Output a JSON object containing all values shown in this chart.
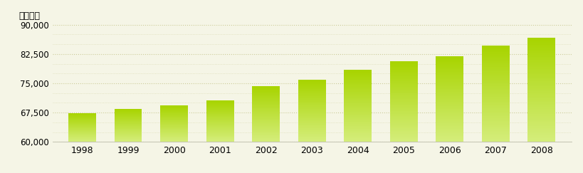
{
  "years": [
    1998,
    1999,
    2000,
    2001,
    2002,
    2003,
    2004,
    2005,
    2006,
    2007,
    2008
  ],
  "values": [
    67400,
    68500,
    69300,
    70600,
    74300,
    75900,
    78400,
    80600,
    81900,
    84600,
    86700
  ],
  "ylim": [
    60000,
    91000
  ],
  "yticks": [
    60000,
    67500,
    75000,
    82500,
    90000
  ],
  "minor_ticks": [
    62500,
    65000,
    70000,
    72500,
    77500,
    80000,
    85000,
    87500
  ],
  "ylabel": "施術者数",
  "bar_color_bottom": "#d4ed7a",
  "bar_color_top": "#a8d400",
  "background_color": "#f5f5e6",
  "grid_color": "#cccc99",
  "grid_color_minor": "#ddddb8",
  "bar_width": 0.6,
  "xlabel_fontsize": 9,
  "ylabel_fontsize": 9,
  "tick_fontsize": 8.5
}
